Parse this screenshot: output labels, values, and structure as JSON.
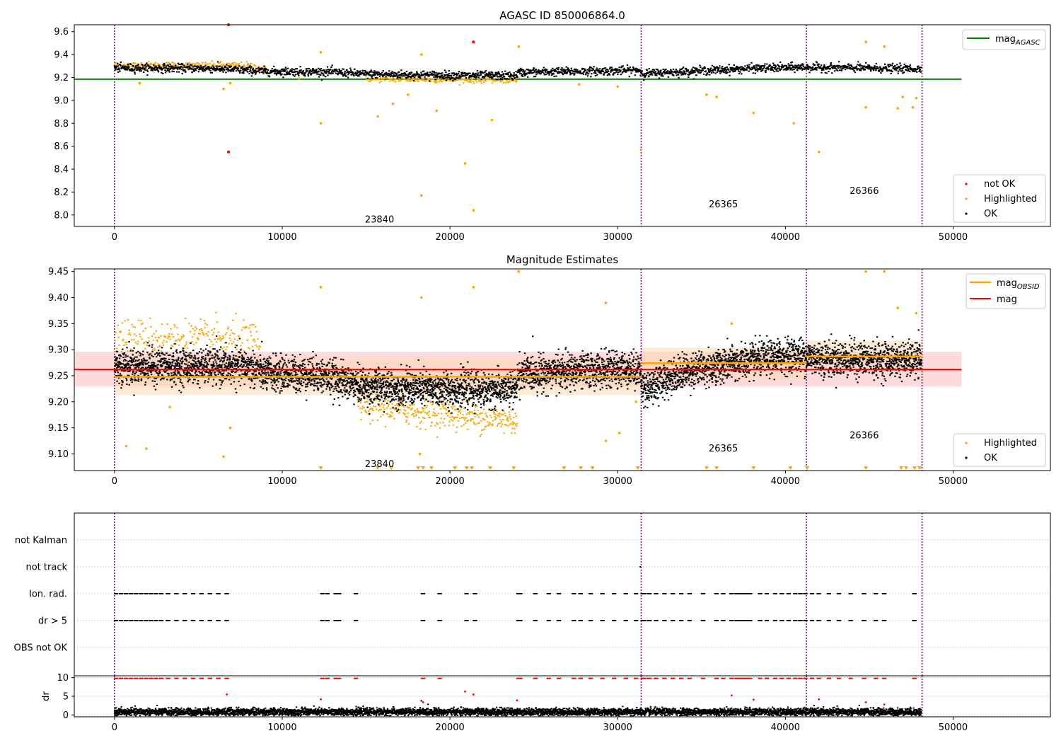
{
  "figure": {
    "background": "#ffffff"
  },
  "colors": {
    "ok": "#000000",
    "highlighted": "#ffa500",
    "not_ok": "#ff0000",
    "agasc_line": "#008000",
    "mag_line": "#ff0000",
    "obsid_line": "#ffa500",
    "obs_boundary": "#800080",
    "band_mag": "#ffb6b6",
    "band_obsid": "#ffd8b0",
    "grid": "#b0b0b0"
  },
  "chart_data": [
    {
      "id": "top",
      "type": "scatter",
      "title": "AGASC ID 850006864.0",
      "xlim": [
        -2400,
        55800
      ],
      "ylim": [
        7.9,
        9.66
      ],
      "xticks": [
        0,
        10000,
        20000,
        30000,
        40000,
        50000
      ],
      "xtick_labels": [
        "0",
        "10000",
        "20000",
        "30000",
        "40000",
        "50000"
      ],
      "yticks": [
        8.0,
        8.2,
        8.4,
        8.6,
        8.8,
        9.0,
        9.2,
        9.4,
        9.6
      ],
      "ytick_labels": [
        "8.0",
        "8.2",
        "8.4",
        "8.6",
        "8.8",
        "9.0",
        "9.2",
        "9.4",
        "9.6"
      ],
      "obs_boundaries": [
        0,
        31400,
        41250,
        48150
      ],
      "obsid_labels": [
        {
          "text": "23840",
          "x": 15800,
          "y": 7.96
        },
        {
          "text": "26365",
          "x": 36300,
          "y": 8.09
        },
        {
          "text": "26366",
          "x": 44700,
          "y": 8.21
        }
      ],
      "agasc_line": {
        "value": 9.185,
        "x": [
          0,
          50500
        ]
      },
      "ok_trend": [
        [
          0,
          9.29
        ],
        [
          6000,
          9.285
        ],
        [
          9000,
          9.26
        ],
        [
          13000,
          9.255
        ],
        [
          15000,
          9.235
        ],
        [
          20000,
          9.225
        ],
        [
          23900,
          9.22
        ],
        [
          24100,
          9.25
        ],
        [
          30000,
          9.265
        ],
        [
          31300,
          9.27
        ],
        [
          31500,
          9.24
        ],
        [
          35000,
          9.265
        ],
        [
          38000,
          9.285
        ],
        [
          41000,
          9.295
        ],
        [
          44000,
          9.29
        ],
        [
          48100,
          9.28
        ]
      ],
      "ok_spread": 0.018,
      "highlighted_band": [
        [
          0,
          9.315
        ],
        [
          8000,
          9.31
        ],
        [
          9000,
          9.28
        ]
      ],
      "highlighted_low_band": [
        [
          15000,
          9.19
        ],
        [
          24000,
          9.18
        ]
      ],
      "highlighted_outliers": [
        [
          12300,
          9.42
        ],
        [
          18300,
          9.4
        ],
        [
          24100,
          9.47
        ],
        [
          12300,
          8.8
        ],
        [
          15700,
          8.86
        ],
        [
          16600,
          8.97
        ],
        [
          18300,
          8.17
        ],
        [
          20900,
          8.45
        ],
        [
          21400,
          8.04
        ],
        [
          22500,
          8.83
        ],
        [
          31400,
          8.57
        ],
        [
          35300,
          9.05
        ],
        [
          35900,
          9.03
        ],
        [
          38100,
          8.89
        ],
        [
          40500,
          8.8
        ],
        [
          42000,
          8.55
        ],
        [
          44800,
          8.94
        ],
        [
          44800,
          9.51
        ],
        [
          45900,
          9.47
        ],
        [
          46700,
          8.93
        ],
        [
          47000,
          9.03
        ],
        [
          47600,
          8.94
        ],
        [
          47800,
          9.02
        ],
        [
          1500,
          9.15
        ],
        [
          6500,
          9.1
        ],
        [
          6900,
          9.15
        ],
        [
          11000,
          9.19
        ],
        [
          19200,
          8.91
        ],
        [
          17500,
          9.05
        ],
        [
          27700,
          9.14
        ],
        [
          30000,
          9.12
        ]
      ],
      "not_ok_points": [
        [
          6800,
          8.55
        ],
        [
          6800,
          9.66
        ],
        [
          21400,
          9.51
        ]
      ],
      "legend_upper": [
        "mag_AGASC"
      ],
      "legend_lower": [
        "not OK",
        "Highlighted",
        "OK"
      ]
    },
    {
      "id": "middle",
      "type": "scatter",
      "title": "Magnitude Estimates",
      "xlim": [
        -2400,
        55800
      ],
      "ylim": [
        9.068,
        9.455
      ],
      "xticks": [
        0,
        10000,
        20000,
        30000,
        40000,
        50000
      ],
      "xtick_labels": [
        "0",
        "10000",
        "20000",
        "30000",
        "40000",
        "50000"
      ],
      "yticks": [
        9.1,
        9.15,
        9.2,
        9.25,
        9.3,
        9.35,
        9.4,
        9.45
      ],
      "ytick_labels": [
        "9.10",
        "9.15",
        "9.20",
        "9.25",
        "9.30",
        "9.35",
        "9.40",
        "9.45"
      ],
      "obs_boundaries": [
        0,
        31400,
        41250,
        48150
      ],
      "obsid_labels": [
        {
          "text": "23840",
          "x": 15800,
          "y": 9.08
        },
        {
          "text": "26365",
          "x": 36300,
          "y": 9.11
        },
        {
          "text": "26366",
          "x": 44700,
          "y": 9.135
        }
      ],
      "mag_line": {
        "value": 9.262,
        "band": [
          9.229,
          9.296
        ],
        "x": [
          0,
          50500
        ]
      },
      "obsid_segments": [
        {
          "x": [
            0,
            31400
          ],
          "value": 9.248,
          "band": [
            9.213,
            9.283
          ]
        },
        {
          "x": [
            31400,
            41250
          ],
          "value": 9.274,
          "band": [
            9.244,
            9.304
          ]
        },
        {
          "x": [
            41250,
            48150
          ],
          "value": 9.287,
          "band": [
            9.257,
            9.317
          ]
        }
      ],
      "ok_trend": [
        [
          0,
          9.27
        ],
        [
          8000,
          9.268
        ],
        [
          9000,
          9.255
        ],
        [
          12000,
          9.255
        ],
        [
          15000,
          9.23
        ],
        [
          20000,
          9.225
        ],
        [
          23900,
          9.225
        ],
        [
          24100,
          9.255
        ],
        [
          27000,
          9.26
        ],
        [
          31300,
          9.265
        ],
        [
          31500,
          9.225
        ],
        [
          34000,
          9.26
        ],
        [
          38000,
          9.28
        ],
        [
          40000,
          9.29
        ],
        [
          41000,
          9.29
        ],
        [
          42000,
          9.285
        ],
        [
          48100,
          9.28
        ]
      ],
      "ok_spread": 0.03,
      "highlighted_band": [
        [
          0,
          9.325
        ],
        [
          8000,
          9.32
        ],
        [
          8700,
          9.31
        ]
      ],
      "highlighted_low_band": [
        [
          14500,
          9.195
        ],
        [
          24000,
          9.165
        ]
      ],
      "highlighted_outliers": [
        [
          12300,
          9.42
        ],
        [
          18300,
          9.4
        ],
        [
          21400,
          9.42
        ],
        [
          24100,
          9.45
        ],
        [
          29300,
          9.39
        ],
        [
          31100,
          9.2
        ],
        [
          36800,
          9.35
        ],
        [
          44800,
          9.45
        ],
        [
          45900,
          9.45
        ],
        [
          46700,
          9.38
        ],
        [
          47800,
          9.37
        ],
        [
          700,
          9.115
        ],
        [
          1900,
          9.11
        ],
        [
          6500,
          9.095
        ],
        [
          6900,
          9.15
        ],
        [
          3300,
          9.19
        ],
        [
          18200,
          9.1
        ],
        [
          30100,
          9.14
        ],
        [
          29300,
          9.125
        ]
      ],
      "clipped_markers": [
        12300,
        15700,
        16500,
        18100,
        18400,
        18900,
        20300,
        21000,
        21300,
        22400,
        23800,
        26800,
        27800,
        28500,
        31200,
        35300,
        35900,
        38100,
        40300,
        41300,
        44800,
        46900,
        47200,
        47700,
        48000
      ],
      "legend_upper": [
        "mag_OBSID",
        "mag"
      ],
      "legend_lower": [
        "Highlighted",
        "OK"
      ]
    },
    {
      "id": "flags",
      "type": "scatter",
      "xlim": [
        -2400,
        55800
      ],
      "categories": [
        "not Kalman",
        "not track",
        "Ion. rad.",
        "dr > 5",
        "OBS not OK"
      ],
      "obs_boundaries": [
        0,
        31400,
        41250,
        48150
      ],
      "ion_rad_x": [
        0,
        300,
        600,
        900,
        1200,
        1500,
        1800,
        2100,
        2400,
        2700,
        3100,
        3600,
        4100,
        4600,
        5100,
        5600,
        6100,
        6600,
        12300,
        12600,
        13100,
        13300,
        14300,
        18300,
        19300,
        20900,
        21400,
        24000,
        24100,
        25000,
        25800,
        26400,
        27300,
        27700,
        28300,
        29000,
        29700,
        30400,
        31000,
        31400,
        31500,
        31800,
        32200,
        32700,
        33200,
        33700,
        34200,
        35000,
        35800,
        36200,
        36700,
        37000,
        37200,
        37400,
        37600,
        37800,
        38400,
        38800,
        39300,
        39700,
        40100,
        40500,
        40800,
        41100,
        41500,
        41900,
        42500,
        43100,
        43800,
        44600,
        45300,
        45800,
        47600
      ],
      "not_track_x": [
        31350
      ],
      "dr_flag_x": [
        0,
        300,
        600,
        900,
        1200,
        1500,
        1800,
        2100,
        2400,
        2700,
        3100,
        3600,
        4100,
        4600,
        5100,
        5600,
        6100,
        6600,
        12300,
        12600,
        13100,
        13300,
        14300,
        18300,
        19300,
        20900,
        21400,
        24000,
        24100,
        25000,
        25800,
        26400,
        27300,
        27700,
        28300,
        29000,
        29700,
        30400,
        31000,
        31400,
        31500,
        31800,
        32200,
        32700,
        33200,
        33700,
        34200,
        35000,
        35800,
        36200,
        36700,
        37000,
        37200,
        37400,
        37600,
        37800,
        38400,
        38800,
        39300,
        39700,
        40100,
        40500,
        40800,
        41100,
        41500,
        41900,
        42500,
        43100,
        43800,
        44600,
        45300,
        45800,
        47600
      ]
    },
    {
      "id": "dr",
      "type": "scatter",
      "ylabel": "dr",
      "xlim": [
        -2400,
        55800
      ],
      "ylim": [
        -0.5,
        10.5
      ],
      "xticks": [
        0,
        10000,
        20000,
        30000,
        40000,
        50000
      ],
      "xtick_labels": [
        "0",
        "10000",
        "20000",
        "30000",
        "40000",
        "50000"
      ],
      "yticks": [
        0,
        5,
        10
      ],
      "ytick_labels": [
        "0",
        "5",
        "10"
      ],
      "obs_boundaries": [
        0,
        31400,
        41250,
        48150
      ],
      "ok_mean": 1.0,
      "ok_spread": 0.8,
      "red_at_10_x": [
        0,
        300,
        600,
        900,
        1200,
        1500,
        1800,
        2100,
        2400,
        2700,
        3100,
        3600,
        4100,
        4600,
        5100,
        5600,
        6100,
        6600,
        12300,
        12600,
        13100,
        13300,
        14300,
        18300,
        19300,
        24000,
        24100,
        25000,
        25800,
        26400,
        27300,
        27700,
        28300,
        29000,
        29700,
        30400,
        31000,
        31400,
        31500,
        31800,
        32200,
        32700,
        33200,
        33700,
        34200,
        35000,
        35800,
        36200,
        36700,
        37000,
        37200,
        37400,
        37600,
        37800,
        38400,
        38800,
        39300,
        39700,
        40100,
        40500,
        40800,
        41100,
        41500,
        41900,
        42500,
        43100,
        43800,
        44600,
        45300,
        45800,
        47600
      ],
      "red_mid": [
        [
          6700,
          5.5
        ],
        [
          12300,
          4.2
        ],
        [
          18300,
          3.8
        ],
        [
          18400,
          3.4
        ],
        [
          20900,
          6.3
        ],
        [
          21400,
          5.5
        ],
        [
          24000,
          3.9
        ],
        [
          36800,
          5.2
        ],
        [
          38100,
          4.1
        ],
        [
          42000,
          4.2
        ],
        [
          44800,
          3.4
        ],
        [
          45900,
          2.8
        ]
      ]
    }
  ],
  "legend_labels": {
    "mag_agasc": "mag",
    "mag_agasc_sub": "AGASC",
    "mag_obsid": "mag",
    "mag_obsid_sub": "OBSID",
    "mag": "mag",
    "not_ok": "not OK",
    "highlighted": "Highlighted",
    "ok": "OK"
  }
}
